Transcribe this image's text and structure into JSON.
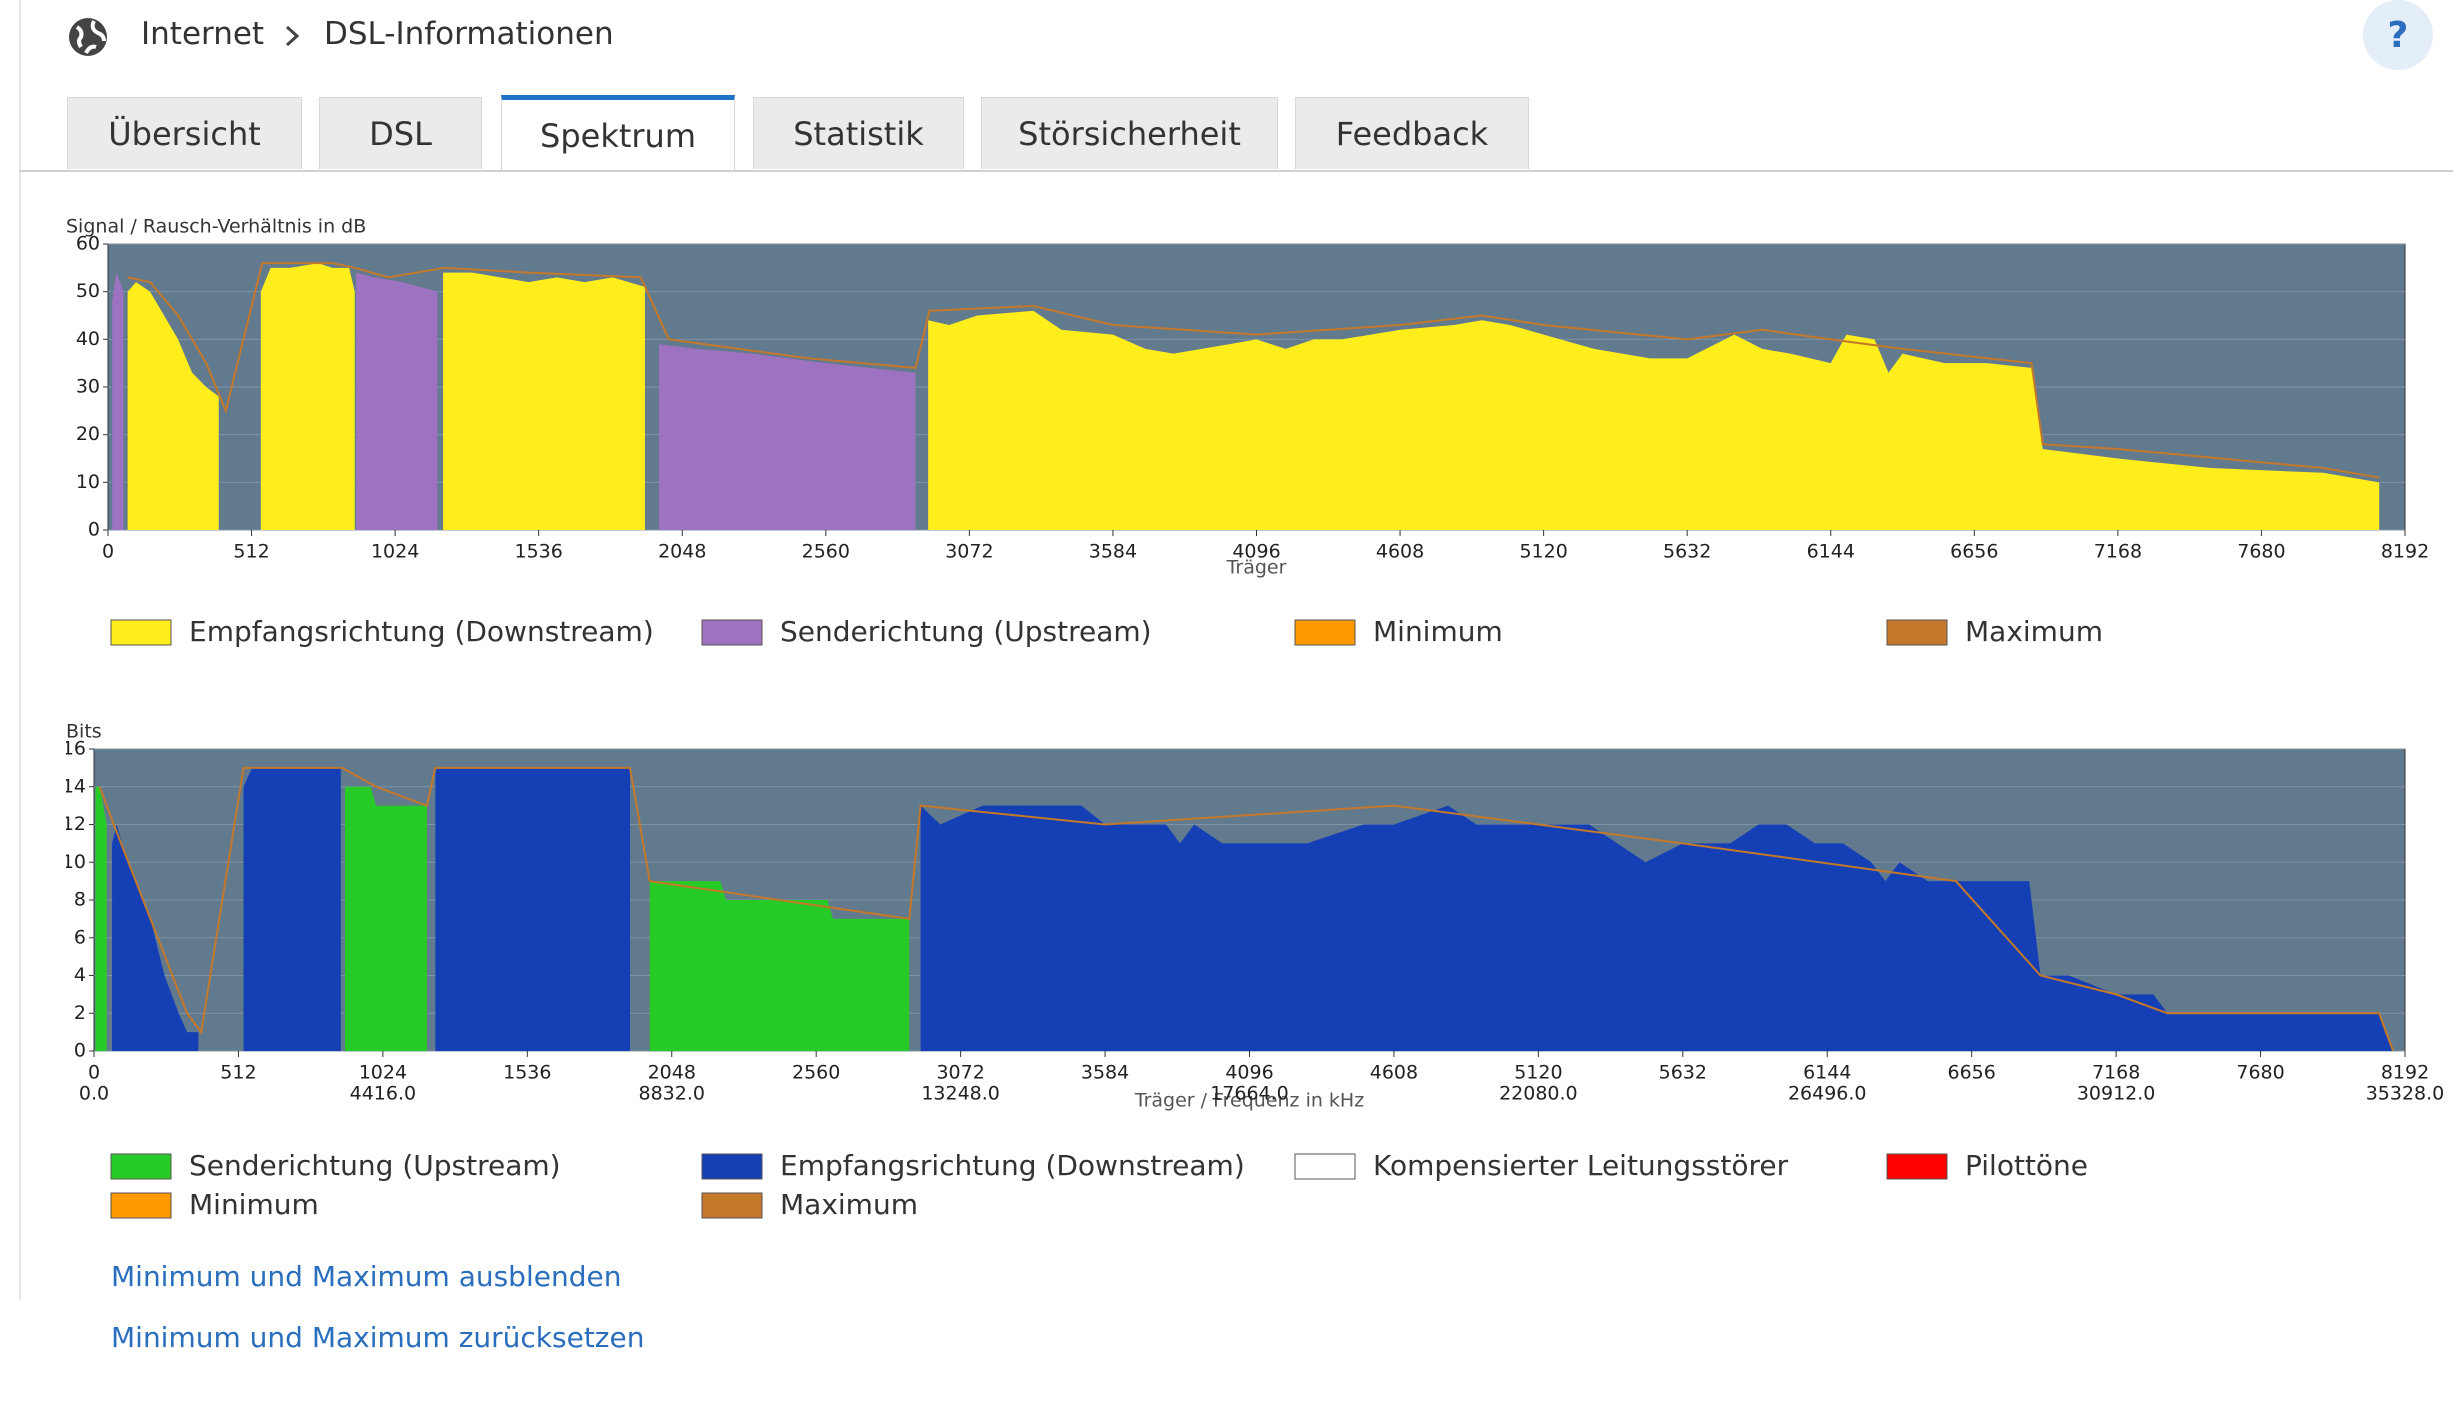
{
  "breadcrumb": {
    "items": [
      "Internet",
      "DSL-Informationen"
    ]
  },
  "help": "?",
  "tabs": {
    "items": [
      "Übersicht",
      "DSL",
      "Spektrum",
      "Statistik",
      "Störsicherheit",
      "Feedback"
    ],
    "active": 2
  },
  "links": [
    "Minimum und Maximum ausblenden",
    "Minimum und Maximum zurücksetzen"
  ],
  "chart_data": [
    {
      "type": "area",
      "y_label": "Signal / Rausch-Verhältnis in dB",
      "x_label": "Träger",
      "xlim": [
        0,
        8192
      ],
      "ylim": [
        0,
        60
      ],
      "xticks": [
        0,
        512,
        1024,
        1536,
        2048,
        2560,
        3072,
        3584,
        4096,
        4608,
        5120,
        5632,
        6144,
        6656,
        7168,
        7680,
        8192
      ],
      "yticks": [
        0,
        10,
        20,
        30,
        40,
        50,
        60
      ],
      "grid": true,
      "plot_color": "#627a8e",
      "series": [
        {
          "name": "Empfangsrichtung (Downstream)",
          "color": "#ffed1c",
          "mark": "area",
          "x": [
            70,
            100,
            150,
            200,
            250,
            300,
            350,
            395,
            470,
            545,
            580,
            650,
            750,
            800,
            860,
            880,
            1000,
            1195,
            1300,
            1400,
            1500,
            1600,
            1700,
            1800,
            1915,
            2400,
            2925,
            3000,
            3100,
            3300,
            3400,
            3584,
            3700,
            3800,
            3900,
            4000,
            4096,
            4200,
            4300,
            4400,
            4608,
            4800,
            4900,
            5000,
            5120,
            5300,
            5500,
            5632,
            5800,
            5900,
            6000,
            6144,
            6200,
            6300,
            6350,
            6400,
            6550,
            6700,
            6860,
            6900,
            7168,
            7500,
            7900,
            8100
          ],
          "values": [
            50,
            52,
            50,
            45,
            40,
            33,
            30,
            28,
            null,
            50,
            55,
            55,
            56,
            55,
            55,
            50,
            null,
            54,
            54,
            53,
            52,
            53,
            52,
            53,
            51,
            null,
            44,
            43,
            45,
            46,
            42,
            41,
            38,
            37,
            38,
            39,
            40,
            38,
            40,
            40,
            42,
            43,
            44,
            43,
            41,
            38,
            36,
            36,
            41,
            38,
            37,
            35,
            41,
            40,
            33,
            37,
            35,
            35,
            34,
            17,
            15,
            13,
            12,
            10
          ]
        },
        {
          "name": "Senderichtung (Upstream)",
          "color": "#9d72c0",
          "mark": "area",
          "x": [
            15,
            30,
            55,
            500,
            885,
            950,
            1050,
            1175,
            1500,
            1965,
            2100,
            2300,
            2560,
            2880
          ],
          "values": [
            48,
            54,
            50,
            null,
            54,
            53,
            52,
            50,
            null,
            39,
            38,
            37,
            35,
            33
          ]
        },
        {
          "name": "Minimum",
          "color": "#ff9900"
        },
        {
          "name": "Maximum",
          "color": "#c4782a",
          "mark": "line",
          "x": [
            70,
            150,
            250,
            350,
            420,
            550,
            800,
            880,
            1000,
            1200,
            1500,
            1900,
            2000,
            2500,
            2880,
            2930,
            3300,
            3584,
            4096,
            4608,
            4900,
            5120,
            5632,
            5900,
            6144,
            6400,
            6860,
            6900,
            7168,
            7900,
            8100
          ],
          "values": [
            53,
            52,
            45,
            35,
            25,
            56,
            56,
            55,
            53,
            55,
            54,
            53,
            40,
            36,
            34,
            46,
            47,
            43,
            41,
            43,
            45,
            43,
            40,
            42,
            40,
            38,
            35,
            18,
            17,
            13,
            11
          ]
        }
      ]
    },
    {
      "type": "area",
      "y_label": "Bits",
      "x_label": "Träger / Frequenz in kHz",
      "xlim": [
        0,
        8192
      ],
      "ylim": [
        0,
        16
      ],
      "xticks": [
        0,
        512,
        1024,
        1536,
        2048,
        2560,
        3072,
        3584,
        4096,
        4608,
        5120,
        5632,
        6144,
        6656,
        7168,
        7680,
        8192
      ],
      "x2lim": [
        0,
        35328
      ],
      "x2ticks": [
        {
          "value": 0,
          "label": "0.0"
        },
        {
          "value": 4416,
          "label": "4416.0"
        },
        {
          "value": 8832,
          "label": "8832.0"
        },
        {
          "value": 13248,
          "label": "13248.0"
        },
        {
          "value": 17664,
          "label": "17664.0"
        },
        {
          "value": 22080,
          "label": "22080.0"
        },
        {
          "value": 26496,
          "label": "26496.0"
        },
        {
          "value": 30912,
          "label": "30912.0"
        },
        {
          "value": 35328,
          "label": "35328.0"
        }
      ],
      "yticks": [
        0,
        2,
        4,
        6,
        8,
        10,
        12,
        14,
        16
      ],
      "grid": true,
      "plot_color": "#627a8e",
      "series": [
        {
          "name": "Senderichtung (Upstream)",
          "color": "#27cb27",
          "mark": "area",
          "x": [
            5,
            20,
            45,
            500,
            890,
            980,
            1000,
            1180,
            1500,
            1970,
            2220,
            2240,
            2600,
            2620,
            2890
          ],
          "values": [
            14,
            14,
            12,
            null,
            14,
            14,
            13,
            13,
            null,
            9,
            9,
            8,
            8,
            7,
            7
          ]
        },
        {
          "name": "Empfangsrichtung (Downstream)",
          "color": "#1540b5",
          "mark": "area",
          "x": [
            64,
            80,
            100,
            150,
            200,
            250,
            300,
            330,
            370,
            450,
            530,
            560,
            850,
            875,
            1000,
            1210,
            1500,
            1900,
            2400,
            2930,
            3000,
            3150,
            3500,
            3584,
            3800,
            3850,
            3900,
            4000,
            4100,
            4300,
            4500,
            4608,
            4800,
            4900,
            5000,
            5120,
            5300,
            5400,
            5500,
            5632,
            5800,
            5900,
            6000,
            6100,
            6200,
            6300,
            6350,
            6400,
            6500,
            6600,
            6860,
            6900,
            7000,
            7168,
            7300,
            7350,
            7600,
            8000,
            8100,
            8120,
            8150
          ],
          "values": [
            11,
            12,
            11,
            9,
            7,
            4,
            2,
            1,
            1,
            null,
            14,
            15,
            15,
            15,
            null,
            15,
            15,
            15,
            null,
            13,
            12,
            13,
            13,
            12,
            12,
            11,
            12,
            11,
            11,
            11,
            12,
            12,
            13,
            12,
            12,
            12,
            12,
            11,
            10,
            11,
            11,
            12,
            12,
            11,
            11,
            10,
            9,
            10,
            9,
            9,
            9,
            4,
            4,
            3,
            3,
            2,
            2,
            2,
            2,
            1,
            0
          ]
        },
        {
          "name": "Kompensierter Leitungsstörer",
          "color": "#ffffff"
        },
        {
          "name": "Pilottöne",
          "color": "#ff0000"
        },
        {
          "name": "Minimum",
          "color": "#ff9900"
        },
        {
          "name": "Maximum",
          "color": "#c4782a",
          "mark": "line",
          "x": [
            20,
            70,
            200,
            330,
            380,
            530,
            880,
            1000,
            1180,
            1210,
            1900,
            1970,
            2890,
            2930,
            3584,
            4608,
            5632,
            6600,
            6900,
            7168,
            7350,
            8100,
            8150
          ],
          "values": [
            14,
            12,
            7,
            2,
            1,
            15,
            15,
            14,
            13,
            15,
            15,
            9,
            7,
            13,
            12,
            13,
            11,
            9,
            4,
            3,
            2,
            2,
            0
          ]
        }
      ]
    }
  ]
}
